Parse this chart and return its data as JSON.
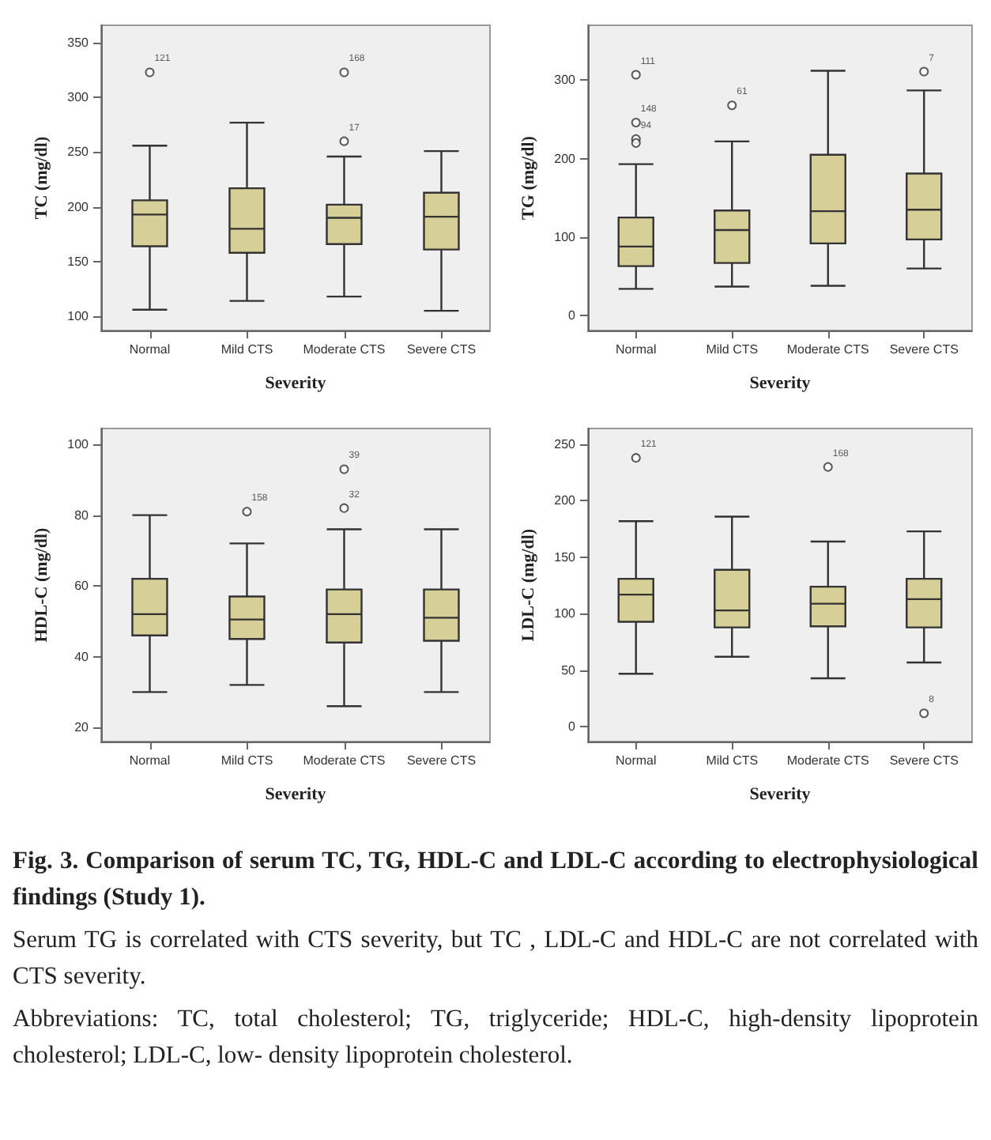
{
  "chart_data": [
    {
      "type": "box",
      "categories": [
        "Normal",
        "Mild CTS",
        "Moderate CTS",
        "Severe CTS"
      ],
      "xlabel": "Severity",
      "ylabel": "TC (mg/dl)",
      "ylim": [
        87,
        366
      ],
      "yticks": [
        100,
        150,
        200,
        250,
        300,
        350
      ],
      "color": "#d6cf98",
      "grid": false,
      "boxes": [
        {
          "low": 106,
          "q1": 164,
          "median": 193,
          "q3": 206,
          "high": 256,
          "outliers": [
            323
          ]
        },
        {
          "low": 114,
          "q1": 158,
          "median": 180,
          "q3": 217,
          "high": 277
        },
        {
          "low": 118,
          "q1": 166,
          "median": 190,
          "q3": 202,
          "high": 246,
          "outliers": [
            323,
            260
          ]
        },
        {
          "low": 105,
          "q1": 161,
          "median": 191,
          "q3": 213,
          "high": 251
        }
      ],
      "annotations": [
        "121",
        "168",
        "17"
      ]
    },
    {
      "type": "box",
      "categories": [
        "Normal",
        "Mild CTS",
        "Moderate CTS",
        "Severe CTS"
      ],
      "xlabel": "Severity",
      "ylabel": "TG (mg/dl)",
      "ylim": [
        -19,
        370
      ],
      "yticks": [
        0,
        100,
        200,
        300
      ],
      "color": "#d6cf98",
      "grid": false,
      "boxes": [
        {
          "low": 34,
          "q1": 63,
          "median": 88,
          "q3": 125,
          "high": 193,
          "outliers": [
            307,
            246,
            225,
            220
          ]
        },
        {
          "low": 37,
          "q1": 67,
          "median": 109,
          "q3": 134,
          "high": 222,
          "outliers": [
            268
          ]
        },
        {
          "low": 38,
          "q1": 92,
          "median": 133,
          "q3": 205,
          "high": 312
        },
        {
          "low": 60,
          "q1": 97,
          "median": 135,
          "q3": 181,
          "high": 287,
          "outliers": [
            311
          ]
        }
      ],
      "annotations": [
        "111",
        "148",
        "94",
        "61",
        "7"
      ]
    },
    {
      "type": "box",
      "categories": [
        "Normal",
        "Mild CTS",
        "Moderate CTS",
        "Severe CTS"
      ],
      "xlabel": "Severity",
      "ylabel": "HDL-C (mg/dl)",
      "ylim": [
        16,
        104.5
      ],
      "yticks": [
        20,
        40,
        60,
        80,
        100
      ],
      "color": "#d6cf98",
      "grid": false,
      "boxes": [
        {
          "low": 30,
          "q1": 46,
          "median": 52,
          "q3": 62,
          "high": 80
        },
        {
          "low": 32,
          "q1": 45,
          "median": 50.5,
          "q3": 57,
          "high": 72,
          "outliers": [
            81
          ]
        },
        {
          "low": 26,
          "q1": 44,
          "median": 52,
          "q3": 59,
          "high": 76,
          "outliers": [
            93,
            82
          ]
        },
        {
          "low": 30,
          "q1": 44.5,
          "median": 51,
          "q3": 59,
          "high": 76
        }
      ],
      "annotations": [
        "158",
        "39",
        "32"
      ]
    },
    {
      "type": "box",
      "categories": [
        "Normal",
        "Mild CTS",
        "Moderate CTS",
        "Severe CTS"
      ],
      "xlabel": "Severity",
      "ylabel": "LDL-C (mg/dl)",
      "ylim": [
        -13,
        264
      ],
      "yticks": [
        0,
        50,
        100,
        150,
        200,
        250
      ],
      "color": "#d6cf98",
      "grid": false,
      "boxes": [
        {
          "low": 47,
          "q1": 93,
          "median": 117,
          "q3": 131,
          "high": 182,
          "outliers": [
            238
          ]
        },
        {
          "low": 62,
          "q1": 88,
          "median": 103,
          "q3": 139,
          "high": 186
        },
        {
          "low": 43,
          "q1": 89,
          "median": 109,
          "q3": 124,
          "high": 164,
          "outliers": [
            230
          ]
        },
        {
          "low": 57,
          "q1": 88,
          "median": 113,
          "q3": 131,
          "high": 173,
          "outliers": [
            12
          ]
        }
      ],
      "annotations": [
        "121",
        "168",
        "8"
      ]
    },
    {
      "type": "other",
      "title": "Fig. 3. Comparison of serum TC, TG, HDL-C and LDL-C according to electrophysiological findings (Study 1).",
      "annotations": [
        "Serum TG is correlated with CTS severity, but TC , LDL-C and HDL-C are not correlated with CTS severity.",
        "Abbreviations: TC, total cholesterol; TG, triglyceride; HDL-C, high-density lipoprotein cholesterol; LDL-C, low- density lipoprotein cholesterol."
      ]
    }
  ]
}
